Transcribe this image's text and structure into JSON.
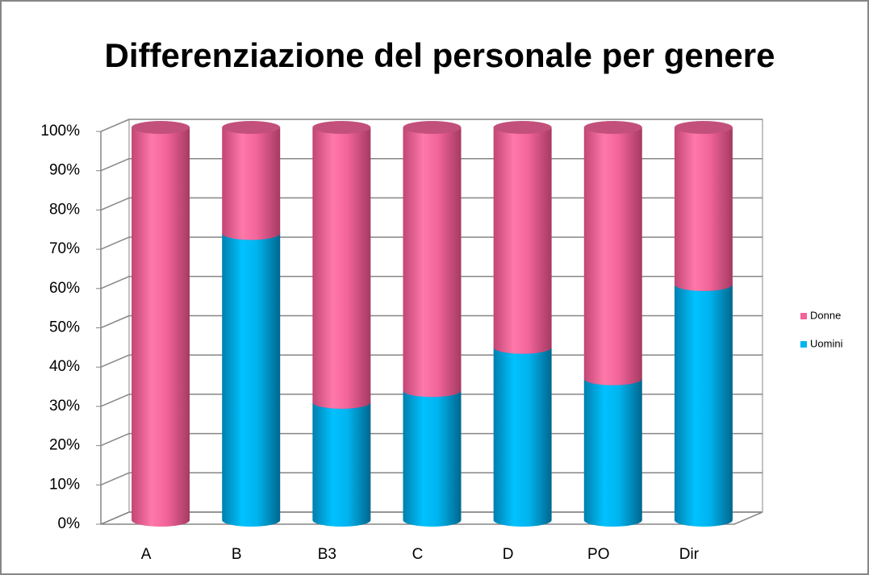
{
  "chart_data": {
    "type": "bar3d_stacked",
    "title": "Differenziazione del personale per genere",
    "categories": [
      "A",
      "B",
      "B3",
      "C",
      "D",
      "PO",
      "Dir"
    ],
    "series": [
      {
        "name": "Uomini",
        "color": "#00b4ef",
        "values": [
          0,
          73,
          30,
          33,
          44,
          36,
          60
        ]
      },
      {
        "name": "Donne",
        "color": "#f2649a",
        "values": [
          100,
          27,
          70,
          67,
          56,
          64,
          40
        ]
      }
    ],
    "ylim": [
      0,
      100
    ],
    "yticks": [
      {
        "value": 0,
        "label": "0%"
      },
      {
        "value": 10,
        "label": "10%"
      },
      {
        "value": 20,
        "label": "20%"
      },
      {
        "value": 30,
        "label": "30%"
      },
      {
        "value": 40,
        "label": "40%"
      },
      {
        "value": 50,
        "label": "50%"
      },
      {
        "value": 60,
        "label": "60%"
      },
      {
        "value": 70,
        "label": "70%"
      },
      {
        "value": 80,
        "label": "80%"
      },
      {
        "value": 90,
        "label": "90%"
      },
      {
        "value": 100,
        "label": "100%"
      }
    ],
    "grid": true,
    "legend": "right"
  }
}
